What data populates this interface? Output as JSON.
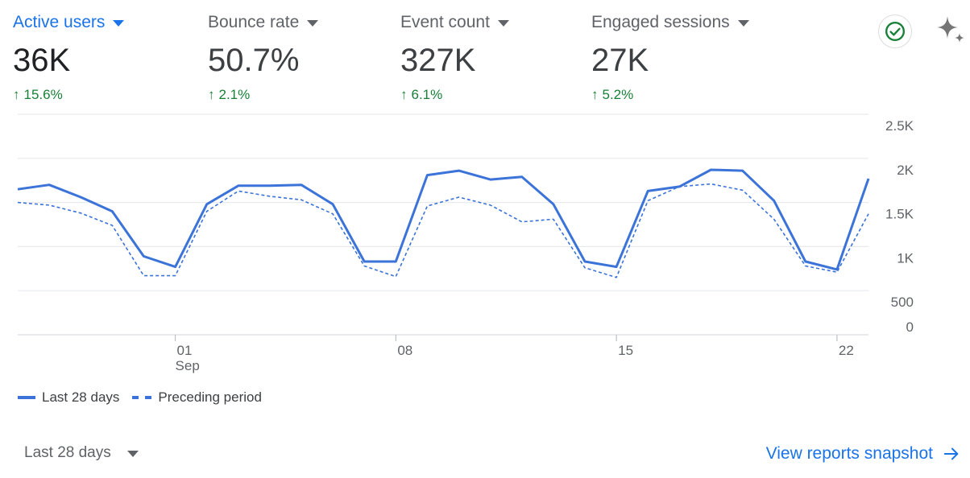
{
  "metrics": [
    {
      "label": "Active users",
      "value": "36K",
      "delta": "15.6%"
    },
    {
      "label": "Bounce rate",
      "value": "50.7%",
      "delta": "2.1%"
    },
    {
      "label": "Event count",
      "value": "327K",
      "delta": "6.1%"
    },
    {
      "label": "Engaged sessions",
      "value": "27K",
      "delta": "5.2%"
    }
  ],
  "icons": {
    "check": "check-circle-icon",
    "sparkle": "sparkle-icon",
    "arrow": "arrow-right-icon",
    "delta": "arrow-up-icon"
  },
  "colors": {
    "accent": "#1a73e8",
    "series": "#3b73d8",
    "positive": "#188038"
  },
  "chart_data": {
    "type": "line",
    "x_ticks": [
      {
        "label": "01",
        "sub": "Sep",
        "index": 5
      },
      {
        "label": "08",
        "sub": "",
        "index": 12
      },
      {
        "label": "15",
        "sub": "",
        "index": 19
      },
      {
        "label": "22",
        "sub": "",
        "index": 26
      }
    ],
    "y_ticks": [
      {
        "value": 0,
        "label": "0"
      },
      {
        "value": 500,
        "label": "500"
      },
      {
        "value": 1000,
        "label": "1K"
      },
      {
        "value": 1500,
        "label": "1.5K"
      },
      {
        "value": 2000,
        "label": "2K"
      },
      {
        "value": 2500,
        "label": "2.5K"
      }
    ],
    "ylim": [
      0,
      2500
    ],
    "grid": true,
    "legend_position": "bottom-left",
    "series": [
      {
        "name": "Last 28 days",
        "style": "solid",
        "values": [
          1650,
          1700,
          1560,
          1400,
          890,
          770,
          1480,
          1690,
          1690,
          1700,
          1480,
          830,
          830,
          1810,
          1860,
          1760,
          1790,
          1480,
          830,
          770,
          1630,
          1680,
          1870,
          1860,
          1520,
          830,
          740,
          1770
        ]
      },
      {
        "name": "Preceding period",
        "style": "dashed",
        "values": [
          1500,
          1470,
          1380,
          1240,
          670,
          670,
          1400,
          1630,
          1570,
          1530,
          1370,
          780,
          660,
          1460,
          1560,
          1470,
          1280,
          1310,
          760,
          650,
          1520,
          1680,
          1710,
          1640,
          1310,
          780,
          710,
          1370
        ]
      }
    ]
  },
  "footer": {
    "range_label": "Last 28 days",
    "view_link": "View reports snapshot"
  }
}
